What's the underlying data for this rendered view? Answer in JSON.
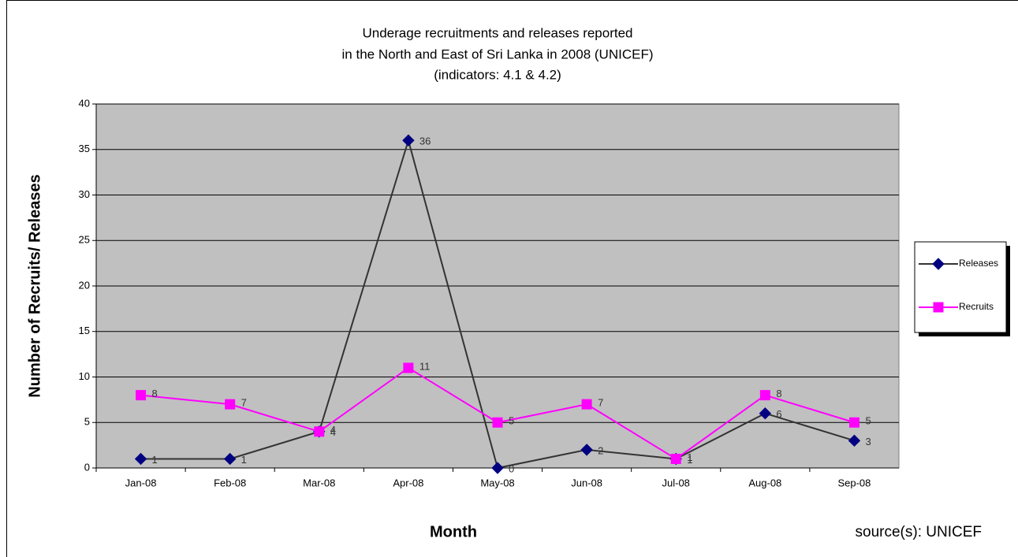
{
  "chart_data": {
    "type": "line",
    "title": [
      "Underage recruitments and releases reported",
      "in the North and East of Sri Lanka in 2008 (UNICEF)",
      "(indicators: 4.1 & 4.2)"
    ],
    "x_label": "Month",
    "y_label": "Number of Recruits/ Releases",
    "annotation": "source(s): UNICEF",
    "categories": [
      "Jan-08",
      "Feb-08",
      "Mar-08",
      "Apr-08",
      "May-08",
      "Jun-08",
      "Jul-08",
      "Aug-08",
      "Sep-08"
    ],
    "series": [
      {
        "name": "Releases",
        "color": "#000080",
        "values": [
          1,
          1,
          4,
          36,
          0,
          2,
          1,
          6,
          3
        ]
      },
      {
        "name": "Recruits",
        "color": "#ff00ff",
        "values": [
          8,
          7,
          4,
          11,
          5,
          7,
          1,
          8,
          5
        ]
      }
    ],
    "ylim": [
      0,
      40
    ],
    "yticks": [
      0,
      5,
      10,
      15,
      20,
      25,
      30,
      35,
      40
    ],
    "grid": true,
    "legend": "right"
  }
}
